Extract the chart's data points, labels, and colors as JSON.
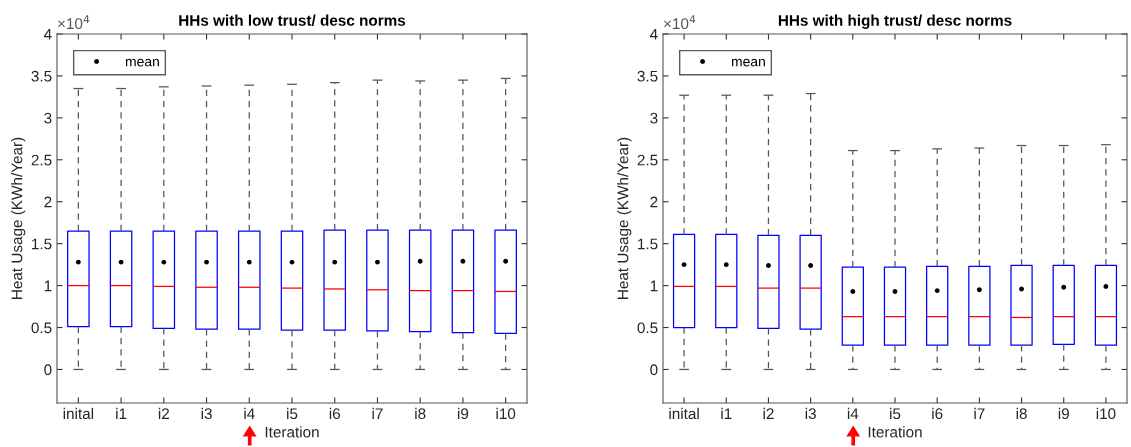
{
  "chart_data": [
    {
      "type": "box",
      "title": "HHs with low trust/ desc norms",
      "xlabel": "Iteration",
      "ylabel": "Heat Usage (KWh/Year)",
      "categories": [
        "inital",
        "i1",
        "i2",
        "i3",
        "i4",
        "i5",
        "i6",
        "i7",
        "i8",
        "i9",
        "i10"
      ],
      "ylim": [
        -0.4,
        4
      ],
      "yticks": [
        0,
        0.5,
        1,
        1.5,
        2,
        2.5,
        3,
        3.5,
        4
      ],
      "annotations": [
        "×10$^{4}$"
      ],
      "legend": "top left",
      "grid": false,
      "marker": "circle",
      "series": [
        {
          "color": "#0000ff",
          "boxes": [
            {
              "low": 0,
              "q1": 0.51,
              "median": 1.0,
              "q3": 1.65,
              "high": 3.35
            },
            {
              "low": 0,
              "q1": 0.51,
              "median": 1.0,
              "q3": 1.65,
              "high": 3.35
            },
            {
              "low": 0,
              "q1": 0.49,
              "median": 0.99,
              "q3": 1.65,
              "high": 3.37
            },
            {
              "low": 0,
              "q1": 0.48,
              "median": 0.98,
              "q3": 1.65,
              "high": 3.38
            },
            {
              "low": 0,
              "q1": 0.48,
              "median": 0.98,
              "q3": 1.65,
              "high": 3.39
            },
            {
              "low": 0,
              "q1": 0.47,
              "median": 0.97,
              "q3": 1.65,
              "high": 3.4
            },
            {
              "low": 0,
              "q1": 0.47,
              "median": 0.96,
              "q3": 1.66,
              "high": 3.42
            },
            {
              "low": 0,
              "q1": 0.46,
              "median": 0.95,
              "q3": 1.66,
              "high": 3.45
            },
            {
              "low": 0,
              "q1": 0.45,
              "median": 0.94,
              "q3": 1.66,
              "high": 3.44
            },
            {
              "low": 0,
              "q1": 0.44,
              "median": 0.94,
              "q3": 1.66,
              "high": 3.45
            },
            {
              "low": 0,
              "q1": 0.43,
              "median": 0.93,
              "q3": 1.66,
              "high": 3.47
            }
          ]
        },
        {
          "type": "scatter",
          "name": "mean",
          "color": "#000000",
          "x": [
            "inital",
            "i1",
            "i2",
            "i3",
            "i4",
            "i5",
            "i6",
            "i7",
            "i8",
            "i9",
            "i10"
          ],
          "values": [
            1.28,
            1.28,
            1.28,
            1.28,
            1.28,
            1.28,
            1.28,
            1.28,
            1.29,
            1.29,
            1.29
          ]
        }
      ]
    },
    {
      "type": "box",
      "title": "HHs with high trust/ desc norms",
      "xlabel": "Iteration",
      "ylabel": "Heat Usage (KWh/Year)",
      "categories": [
        "inital",
        "i1",
        "i2",
        "i3",
        "i4",
        "i5",
        "i6",
        "i7",
        "i8",
        "i9",
        "i10"
      ],
      "ylim": [
        -0.4,
        4
      ],
      "yticks": [
        0,
        0.5,
        1,
        1.5,
        2,
        2.5,
        3,
        3.5,
        4
      ],
      "annotations": [
        "×10$^{4}$"
      ],
      "legend": "top left",
      "grid": false,
      "marker": "circle",
      "series": [
        {
          "color": "#0000ff",
          "boxes": [
            {
              "low": 0,
              "q1": 0.5,
              "median": 0.99,
              "q3": 1.61,
              "high": 3.27
            },
            {
              "low": 0,
              "q1": 0.5,
              "median": 0.99,
              "q3": 1.61,
              "high": 3.27
            },
            {
              "low": 0,
              "q1": 0.49,
              "median": 0.97,
              "q3": 1.6,
              "high": 3.27
            },
            {
              "low": 0,
              "q1": 0.48,
              "median": 0.97,
              "q3": 1.6,
              "high": 3.29
            },
            {
              "low": 0,
              "q1": 0.29,
              "median": 0.63,
              "q3": 1.22,
              "high": 2.61
            },
            {
              "low": 0,
              "q1": 0.29,
              "median": 0.63,
              "q3": 1.22,
              "high": 2.61
            },
            {
              "low": 0,
              "q1": 0.29,
              "median": 0.63,
              "q3": 1.23,
              "high": 2.63
            },
            {
              "low": 0,
              "q1": 0.29,
              "median": 0.63,
              "q3": 1.23,
              "high": 2.64
            },
            {
              "low": 0,
              "q1": 0.29,
              "median": 0.62,
              "q3": 1.24,
              "high": 2.67
            },
            {
              "low": 0,
              "q1": 0.3,
              "median": 0.63,
              "q3": 1.24,
              "high": 2.67
            },
            {
              "low": 0,
              "q1": 0.29,
              "median": 0.63,
              "q3": 1.24,
              "high": 2.68
            }
          ]
        },
        {
          "type": "scatter",
          "name": "mean",
          "color": "#000000",
          "x": [
            "inital",
            "i1",
            "i2",
            "i3",
            "i4",
            "i5",
            "i6",
            "i7",
            "i8",
            "i9",
            "i10"
          ],
          "values": [
            1.25,
            1.25,
            1.24,
            1.24,
            0.93,
            0.93,
            0.94,
            0.95,
            0.96,
            0.98,
            0.99
          ]
        }
      ]
    }
  ]
}
